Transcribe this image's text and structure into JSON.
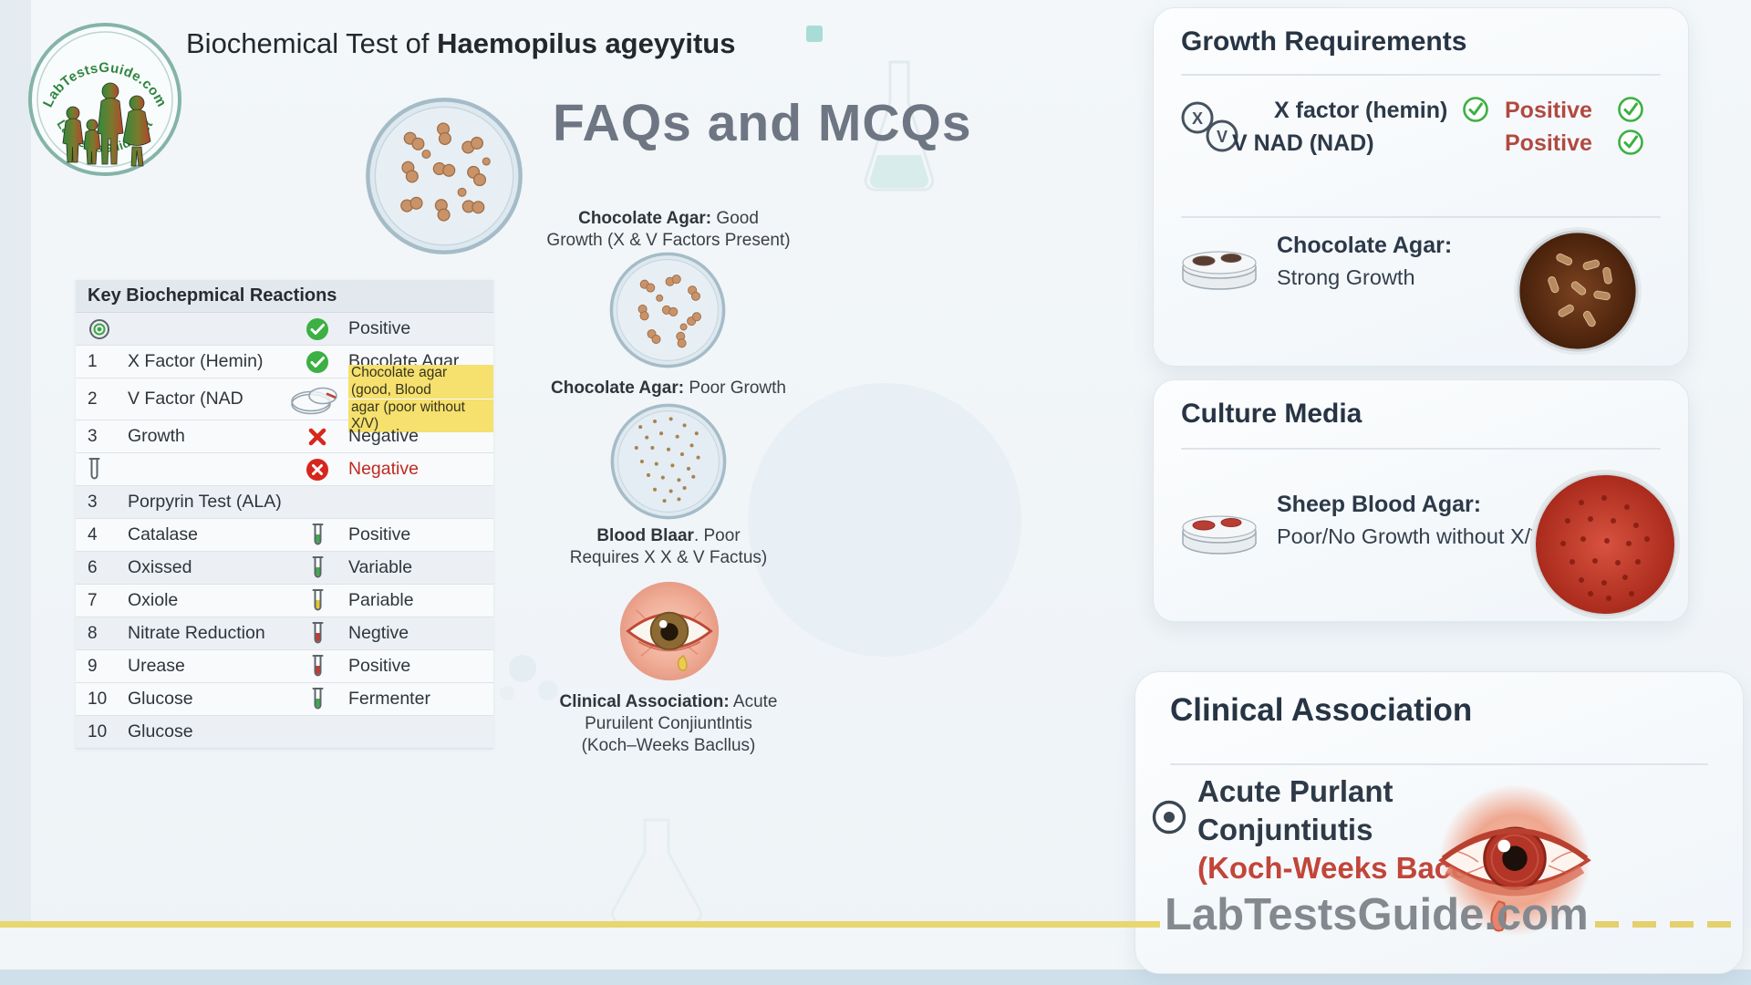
{
  "header": {
    "title_prefix": "Biochemical Test of ",
    "title_species": "Haemopilus ageyyitus",
    "faq_heading": "FAQs and MCQs"
  },
  "logo": {
    "arc_top": "LabTestsGuide.com",
    "arc_bottom": "LabTestsGuide.net"
  },
  "reactions_table": {
    "title": "Key Biochepmical Reactions",
    "shaded_rows": [
      0,
      5,
      7,
      9,
      12
    ],
    "rows": [
      {
        "num": "",
        "name": "",
        "left_icon": "target",
        "mid_icon": "",
        "result_icon": "check-circle",
        "result": "Positive",
        "style": "normal"
      },
      {
        "num": "1",
        "name": "X Factor (Hemin)",
        "left_icon": "",
        "mid_icon": "",
        "result_icon": "check-circle",
        "result": "Bocolate Agar",
        "style": "normal"
      },
      {
        "num": "2",
        "name": "V Factor (NAD",
        "left_icon": "",
        "mid_icon": "petri-sketch",
        "result_icon": "",
        "result": "",
        "result_lines": [
          "Chocolate agar (good, Blood",
          "agar (poor without X/V)"
        ],
        "style": "highlight"
      },
      {
        "num": "3",
        "name": "Growth",
        "left_icon": "",
        "mid_icon": "",
        "result_icon": "x-mark",
        "result": "Negative",
        "style": "normal"
      },
      {
        "num": "",
        "name": "",
        "left_icon": "tube-outline",
        "mid_icon": "",
        "result_icon": "x-circle",
        "result": "Negative",
        "style": "red"
      },
      {
        "num": "3",
        "name": "Porpyrin Test (ALA)",
        "left_icon": "",
        "mid_icon": "",
        "result_icon": "",
        "result": "",
        "style": "normal"
      },
      {
        "num": "4",
        "name": "Catalase",
        "left_icon": "",
        "mid_icon": "",
        "result_icon": "tube-green",
        "result": "Positive",
        "style": "normal"
      },
      {
        "num": "6",
        "name": "Oxissed",
        "left_icon": "",
        "mid_icon": "",
        "result_icon": "tube-green",
        "result": "Variable",
        "style": "normal"
      },
      {
        "num": "7",
        "name": "Oxiole",
        "left_icon": "",
        "mid_icon": "",
        "result_icon": "tube-yellow",
        "result": "Pariable",
        "style": "normal"
      },
      {
        "num": "8",
        "name": "Nitrate Reduction",
        "left_icon": "",
        "mid_icon": "",
        "result_icon": "tube-red",
        "result": "Negtive",
        "style": "normal"
      },
      {
        "num": "9",
        "name": "Urease",
        "left_icon": "",
        "mid_icon": "",
        "result_icon": "tube-red",
        "result": "Positive",
        "style": "normal"
      },
      {
        "num": "10",
        "name": "Glucose",
        "left_icon": "",
        "mid_icon": "",
        "result_icon": "tube-green",
        "result": "Fermenter",
        "style": "normal"
      },
      {
        "num": "10",
        "name": "Glucose",
        "left_icon": "",
        "mid_icon": "",
        "result_icon": "",
        "result": "",
        "style": "normal"
      }
    ]
  },
  "middle_column": {
    "captions": [
      {
        "bold": "Chocolate Agar:",
        "rest": " Good",
        "line2": "Growth (X & V Factors Present)",
        "line3": ""
      },
      {
        "bold": "Chocolate Agar:",
        "rest": " Poor Growth",
        "line2": "",
        "line3": ""
      },
      {
        "bold": "Blood Blaar",
        "rest": ". Poor",
        "line2": "Requires X X & V Factus)",
        "line3": ""
      },
      {
        "bold": "Clinical Association:",
        "rest": " Acute",
        "line2": "Puruilent Conjiuntlntis",
        "line3": "(Koch–Weeks Bacllus)"
      }
    ]
  },
  "growth_card": {
    "title": "Growth Requirements",
    "factors": [
      {
        "label": "X factor (hemin)",
        "result": "Positive"
      },
      {
        "label": "V NAD (NAD)",
        "result": "Positive"
      }
    ],
    "agar": {
      "bold": "Chocolate Agar:",
      "line2": "Strong Growth"
    }
  },
  "culture_card": {
    "title": "Culture Media",
    "agar": {
      "bold": "Sheep Blood Agar:",
      "line2": "Poor/No Growth without X/V"
    }
  },
  "clinical_card": {
    "title": "Clinical Association",
    "line1": "Acute Purlant",
    "line2": "Conjuntiutis",
    "line3": "(Koch-Weeks Baccllus)",
    "watermark": "LabTestsGuide.com"
  },
  "colors": {
    "accent_yellow": "#e8d66f",
    "highlight_yellow": "#f6e06e",
    "positive_green": "#3cb043",
    "negative_red": "#d6271c",
    "maroon_positive": "#b04a41",
    "clinical_red": "#c2453a",
    "card_title_navy": "#273444"
  }
}
